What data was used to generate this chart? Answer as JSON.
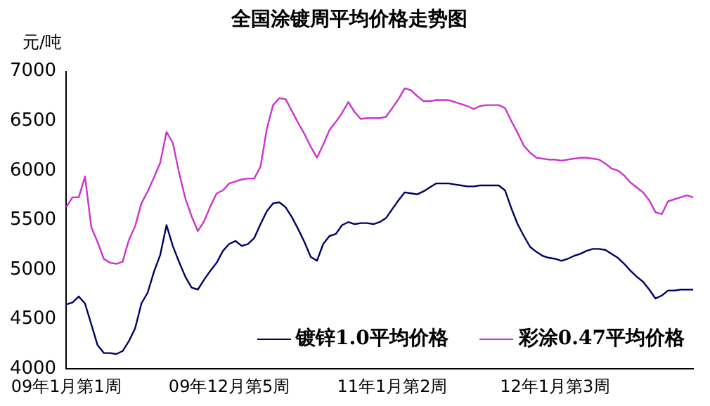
{
  "chart_data": {
    "type": "line",
    "title": "全国涂镀周平均价格走势图",
    "ylabel": "元/吨",
    "categories": [
      "09年1月第1周",
      null,
      null,
      null,
      null,
      null,
      null,
      null,
      null,
      null,
      null,
      null,
      null,
      null,
      null,
      null,
      null,
      null,
      null,
      null,
      null,
      null,
      null,
      null,
      null,
      null,
      "09年12月第5周",
      null,
      null,
      null,
      null,
      null,
      null,
      null,
      null,
      null,
      null,
      null,
      null,
      null,
      null,
      null,
      null,
      null,
      null,
      null,
      null,
      null,
      null,
      null,
      null,
      null,
      "11年1月第2周",
      null,
      null,
      null,
      null,
      null,
      null,
      null,
      null,
      null,
      null,
      null,
      null,
      null,
      null,
      null,
      null,
      null,
      null,
      null,
      null,
      null,
      null,
      null,
      null,
      null,
      "12年1月第3周",
      null,
      null,
      null,
      null,
      null,
      null,
      null,
      null,
      null,
      null,
      null,
      null,
      null,
      null,
      null,
      null,
      null,
      null,
      null,
      null,
      null,
      null
    ],
    "series": [
      {
        "name": "镀锌1.0平均价格",
        "color": "#000066",
        "values": [
          4650,
          4670,
          4730,
          4660,
          4450,
          4240,
          4160,
          4160,
          4150,
          4180,
          4280,
          4410,
          4660,
          4770,
          4980,
          5150,
          5450,
          5240,
          5080,
          4930,
          4820,
          4800,
          4900,
          4990,
          5070,
          5190,
          5260,
          5290,
          5240,
          5260,
          5320,
          5460,
          5590,
          5670,
          5680,
          5630,
          5530,
          5410,
          5280,
          5130,
          5090,
          5260,
          5340,
          5360,
          5450,
          5480,
          5460,
          5470,
          5470,
          5460,
          5480,
          5520,
          5610,
          5700,
          5780,
          5770,
          5760,
          5790,
          5830,
          5870,
          5870,
          5870,
          5860,
          5850,
          5840,
          5840,
          5850,
          5850,
          5850,
          5850,
          5800,
          5620,
          5460,
          5340,
          5230,
          5180,
          5140,
          5120,
          5110,
          5090,
          5110,
          5140,
          5160,
          5190,
          5210,
          5210,
          5200,
          5160,
          5120,
          5060,
          4990,
          4930,
          4880,
          4800,
          4710,
          4740,
          4790,
          4790,
          4800,
          4800,
          4800
        ]
      },
      {
        "name": "彩涂0.47平均价格",
        "color": "#cc33cc",
        "values": [
          5630,
          5730,
          5730,
          5940,
          5430,
          5280,
          5110,
          5070,
          5060,
          5080,
          5300,
          5440,
          5670,
          5790,
          5930,
          6080,
          6390,
          6280,
          5980,
          5720,
          5540,
          5390,
          5490,
          5640,
          5770,
          5800,
          5870,
          5890,
          5910,
          5920,
          5920,
          6040,
          6420,
          6660,
          6730,
          6720,
          6600,
          6480,
          6370,
          6240,
          6130,
          6260,
          6410,
          6490,
          6580,
          6690,
          6590,
          6520,
          6530,
          6530,
          6530,
          6540,
          6630,
          6720,
          6830,
          6810,
          6750,
          6700,
          6700,
          6710,
          6710,
          6710,
          6690,
          6670,
          6650,
          6620,
          6650,
          6660,
          6660,
          6660,
          6630,
          6500,
          6380,
          6250,
          6180,
          6130,
          6120,
          6110,
          6110,
          6100,
          6110,
          6120,
          6130,
          6130,
          6120,
          6110,
          6070,
          6020,
          6000,
          5950,
          5880,
          5830,
          5780,
          5700,
          5580,
          5560,
          5690,
          5710,
          5730,
          5750,
          5730
        ]
      }
    ],
    "ylim": [
      4000,
      7000
    ],
    "yticks": [
      4000,
      4500,
      5000,
      5500,
      6000,
      6500,
      7000
    ],
    "grid": false,
    "legend": "bottom right",
    "marker": "none",
    "line_style": "solid"
  }
}
